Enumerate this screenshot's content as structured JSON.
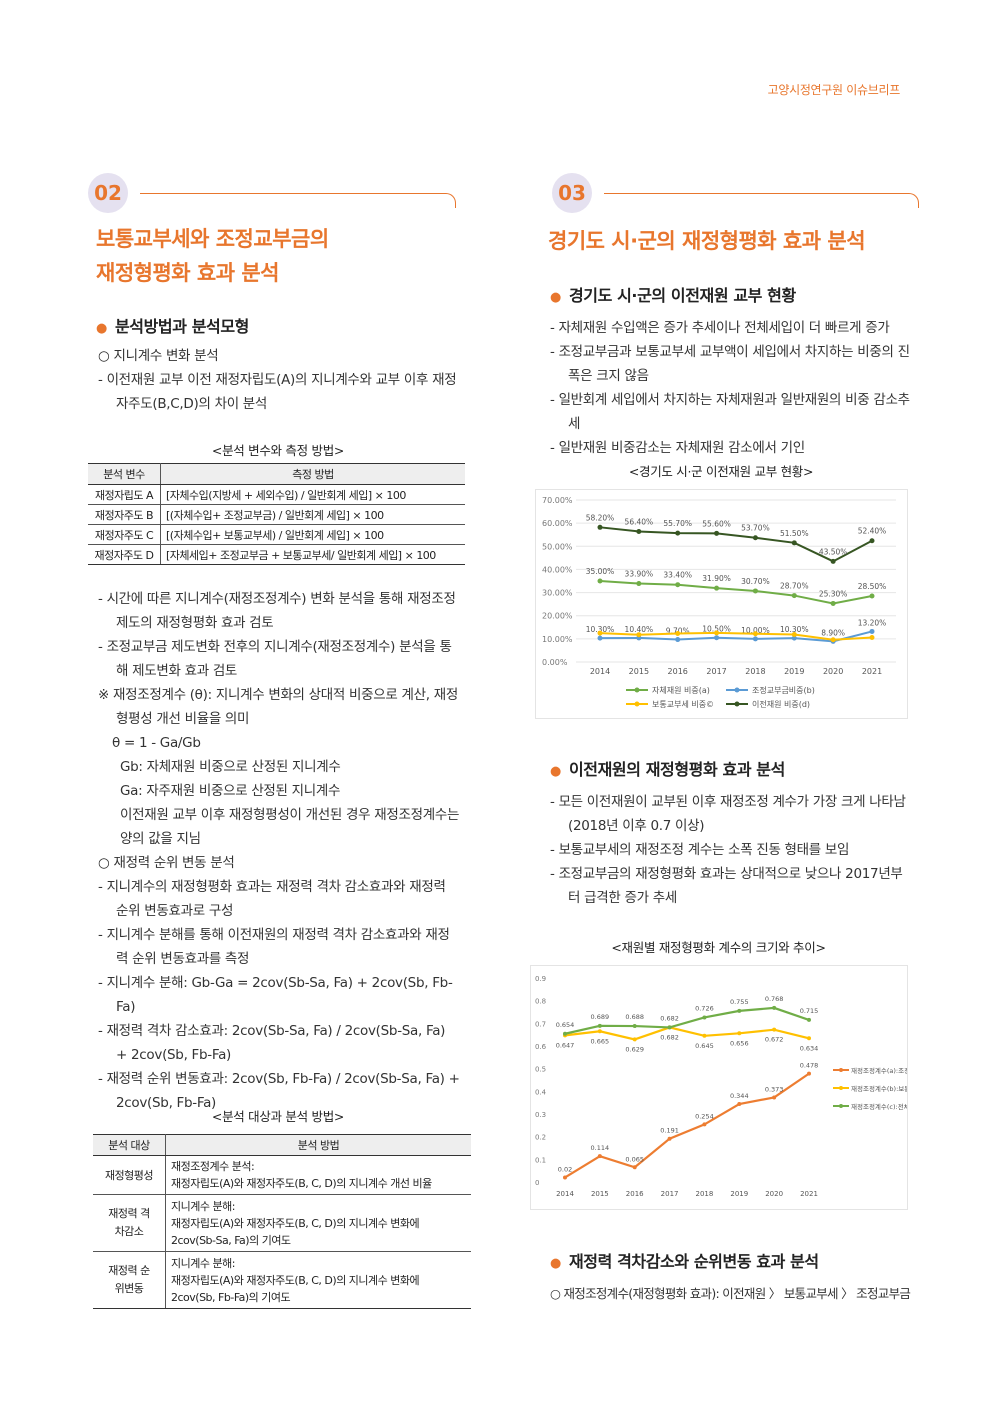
{
  "header": {
    "brand": "고양시정연구원 이슈브리프"
  },
  "left": {
    "badge": "02",
    "title_line1": "보통교부세와 조정교부금의",
    "title_line2": "재정형평화 효과 분석",
    "subhead1": "분석방법과 분석모형",
    "p1": [
      "○  지니계수 변화 분석",
      "- 이전재원 교부 이전 재정자립도(A)의 지니계수와 교부 이후 재정자주도(B,C,D)의 차이 분석"
    ],
    "table1": {
      "caption": "<분석 변수와 측정 방법>",
      "headers": [
        "분석 변수",
        "측정 방법"
      ],
      "rows": [
        [
          "재정자립도 A",
          "[자체수입(지방세 + 세외수입) / 일반회계 세입] × 100"
        ],
        [
          "재정자주도 B",
          "[(자체수입+ 조정교부금) / 일반회계 세입] × 100"
        ],
        [
          "재정자주도 C",
          "[(자체수입+ 보통교부세) / 일반회계 세입] × 100"
        ],
        [
          "재정자주도 D",
          "[자체세입+ 조정교부금 + 보통교부세/ 일반회계 세입] × 100"
        ]
      ]
    },
    "p2": [
      "- 시간에 따른 지니계수(재정조정계수) 변화 분석을 통해 재정조정제도의 재정형평화 효과 검토",
      "- 조정교부금 제도변화 전후의 지니계수(재정조정계수) 분석을 통해 제도변화 효과 검토",
      "※ 재정조정계수 (θ): 지니계수 변화의 상대적 비중으로 계산, 재정형평성 개선 비율을 의미"
    ],
    "p2_indent": [
      "θ = 1 - Ga/Gb",
      "Gb: 자체재원 비중으로 산정된 지니계수",
      "Ga: 자주재원 비중으로 산정된 지니계수",
      "이전재원 교부 이후 재정형평성이 개선된 경우 재정조정계수는 양의 값을 지님"
    ],
    "p3": [
      "○  재정력 순위 변동 분석",
      "- 지니계수의 재정형평화 효과는 재정력 격차 감소효과와 재정력 순위 변동효과로 구성",
      "- 지니계수 분해를 통해 이전재원의 재정력 격차 감소효과와 재정력 순위 변동효과를 측정",
      "- 지니계수 분해: Gb-Ga = 2cov(Sb-Sa, Fa) + 2cov(Sb, Fb-Fa)",
      "- 재정력 격차 감소효과: 2cov(Sb-Sa, Fa) / 2cov(Sb-Sa, Fa) + 2cov(Sb, Fb-Fa)",
      "- 재정력 순위 변동효과: 2cov(Sb, Fb-Fa) / 2cov(Sb-Sa, Fa) + 2cov(Sb, Fb-Fa)"
    ],
    "table2": {
      "caption": "<분석 대상과 분석 방법>",
      "headers": [
        "분석 대상",
        "분석 방법"
      ],
      "rows": [
        {
          "target": "재정형평성",
          "m1": "재정조정계수 분석:",
          "m2": "재정자립도(A)와 재정자주도(B, C, D)의 지니계수 개선 비율",
          "m3": ""
        },
        {
          "target": "재정력 격차감소",
          "m1": "지니계수 분해:",
          "m2": "재정자립도(A)와 재정자주도(B, C, D)의 지니계수 변화에",
          "m3": "2cov(Sb-Sa, Fa)의 기여도"
        },
        {
          "target": "재정력 순위변동",
          "m1": "지니계수 분해:",
          "m2": "재정자립도(A)와 재정자주도(B, C, D)의 지니계수 변화에",
          "m3": "2cov(Sb, Fb-Fa)의 기여도"
        }
      ]
    }
  },
  "right": {
    "badge": "03",
    "title": "경기도 시·군의 재정형평화 효과 분석",
    "subhead1": "경기도 시·군의 이전재원 교부 현황",
    "p1": [
      "- 자체재원 수입액은 증가 추세이나 전체세입이 더 빠르게 증가",
      "- 조정교부금과 보통교부세 교부액이 세입에서 차지하는 비중의 진폭은 크지 않음",
      "- 일반회계 세입에서 차지하는 자체재원과 일반재원의 비중 감소추세",
      "- 일반재원 비중감소는 자체재원 감소에서 기인"
    ],
    "chart1_caption": "<경기도 시·군 이전재원 교부 현황>",
    "subhead2": "이전재원의 재정형평화 효과 분석",
    "p2": [
      "- 모든 이전재원이 교부된 이후 재정조정 계수가 가장 크게 나타남(2018년 이후 0.7 이상)",
      "- 보통교부세의 재정조정 계수는 소폭 진동 형태를 보임",
      "- 조정교부금의 재정형평화 효과는 상대적으로 낮으나 2017년부터 급격한 증가 추세"
    ],
    "chart2_caption": "<재원별 재정형평화 계수의 크기와 추이>",
    "subhead3": "재정력 격차감소와 순위변동 효과 분석",
    "p3": "○  재정조정계수(재정형평화 효과): 이전재원 〉 보통교부세 〉 조정교부금"
  },
  "chart_data": [
    {
      "type": "line",
      "x": [
        "2014",
        "2015",
        "2016",
        "2017",
        "2018",
        "2019",
        "2020",
        "2021"
      ],
      "ylim": [
        0,
        70
      ],
      "yticks": [
        "0.00%",
        "10.00%",
        "20.00%",
        "30.00%",
        "40.00%",
        "50.00%",
        "60.00%",
        "70.00%"
      ],
      "legend_position": "bottom",
      "series": [
        {
          "name": "자체재원 비중(a)",
          "color": "#70ad47",
          "values": [
            35.0,
            33.9,
            33.4,
            31.9,
            30.7,
            28.7,
            25.3,
            28.5
          ],
          "labels": [
            "35.00%",
            "33.90%",
            "33.40%",
            "31.90%",
            "30.70%",
            "28.70%",
            "25.30%",
            "28.50%"
          ]
        },
        {
          "name": "조정교부금비중(b)",
          "color": "#5b9bd5",
          "values": [
            10.3,
            10.4,
            9.7,
            10.5,
            10.0,
            10.3,
            8.9,
            13.2
          ],
          "labels": [
            "10.30%",
            "10.40%",
            "9.70%",
            "10.50%",
            "10.00%",
            "10.30%",
            "8.90%",
            "13.20%"
          ]
        },
        {
          "name": "보통교부세 비중©",
          "color": "#ffc000",
          "values": [
            12.5,
            11.8,
            12.3,
            12.6,
            12.2,
            11.9,
            9.6,
            10.6
          ],
          "labels": []
        },
        {
          "name": "이전재원 비중(d)",
          "color": "#375623",
          "values": [
            58.2,
            56.4,
            55.7,
            55.6,
            53.7,
            51.5,
            43.5,
            52.4
          ],
          "labels": [
            "58.20%",
            "56.40%",
            "55.70%",
            "55.60%",
            "53.70%",
            "51.50%",
            "43.50%",
            "52.40%"
          ]
        }
      ]
    },
    {
      "type": "line",
      "x": [
        "2014",
        "2015",
        "2016",
        "2017",
        "2018",
        "2019",
        "2020",
        "2021"
      ],
      "ylim": [
        0,
        0.9
      ],
      "yticks": [
        "0",
        "0.1",
        "0.2",
        "0.3",
        "0.4",
        "0.5",
        "0.6",
        "0.7",
        "0.8",
        "0.9"
      ],
      "legend_position": "right",
      "series": [
        {
          "name": "재정조정계수(a):조정",
          "color": "#ed7d31",
          "values": [
            0.02,
            0.114,
            0.065,
            0.191,
            0.254,
            0.344,
            0.373,
            0.478
          ],
          "labels": [
            "0.02",
            "0.114",
            "0.065",
            "0.191",
            "0.254",
            "0.344",
            "0.373",
            "0.478"
          ]
        },
        {
          "name": "재정조정계수(b):보통",
          "color": "#ffc000",
          "values": [
            0.647,
            0.665,
            0.629,
            0.682,
            0.645,
            0.656,
            0.672,
            0.634
          ],
          "labels": [
            "0.647",
            "0.665",
            "0.629",
            "0.682",
            "0.645",
            "0.656",
            "0.672",
            "0.634"
          ]
        },
        {
          "name": "재정조정계수(c):전체",
          "color": "#70ad47",
          "values": [
            0.654,
            0.689,
            0.688,
            0.682,
            0.726,
            0.755,
            0.768,
            0.715
          ],
          "labels": [
            "0.654",
            "0.689",
            "0.688",
            "0.682",
            "0.726",
            "0.755",
            "0.768",
            "0.715"
          ]
        }
      ]
    }
  ]
}
